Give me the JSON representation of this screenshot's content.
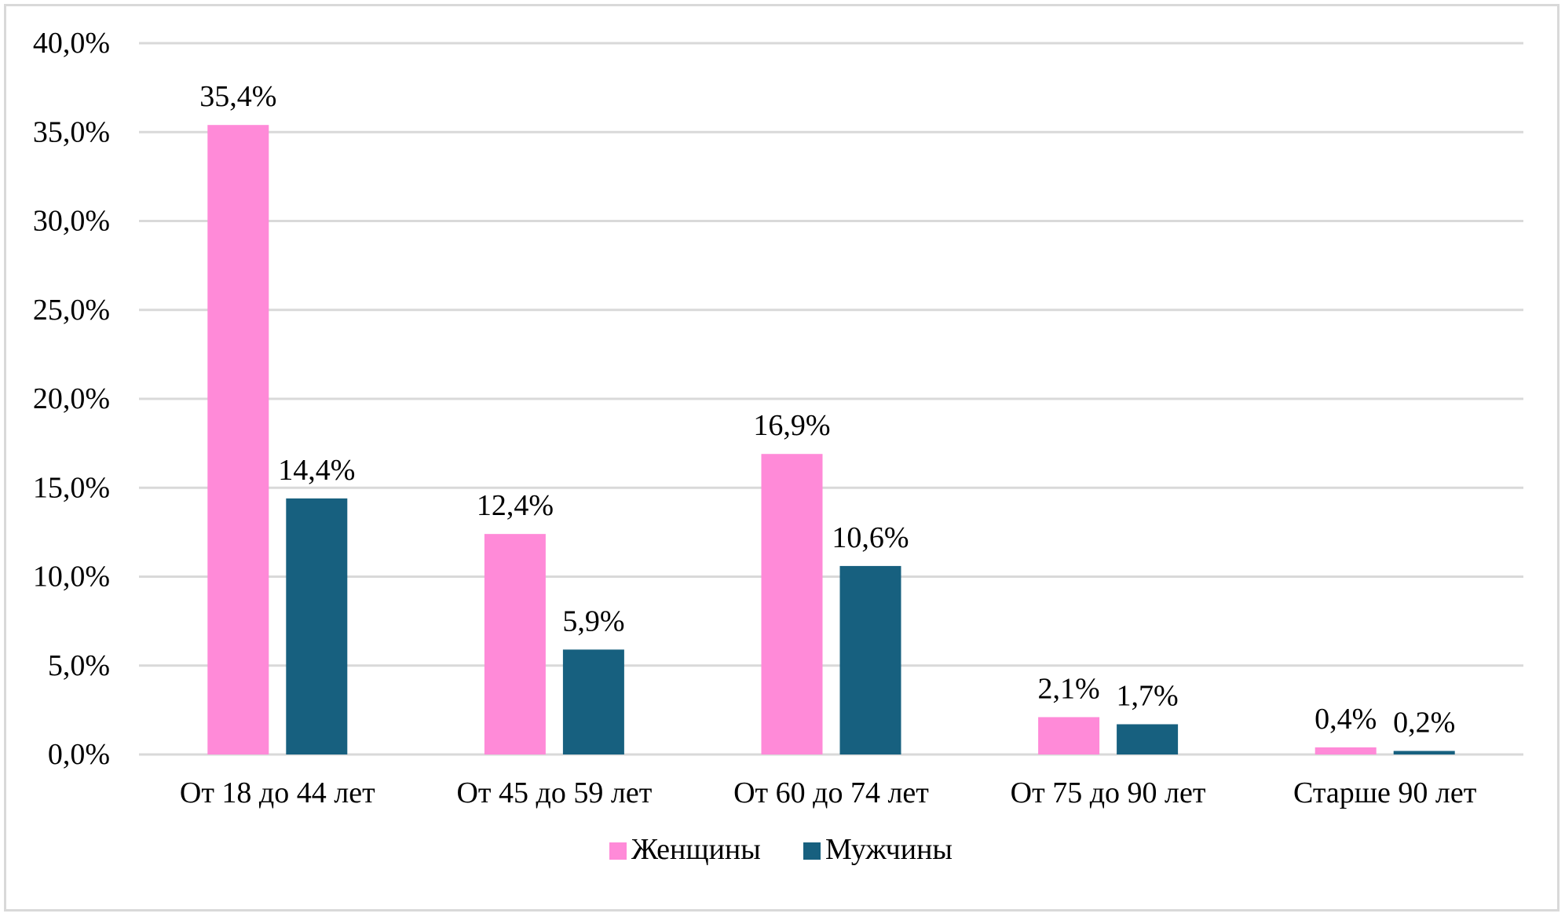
{
  "chart_data": {
    "type": "bar",
    "title": "",
    "xlabel": "",
    "ylabel": "",
    "categories": [
      "От 18 до 44 лет",
      "От 45 до 59 лет",
      "От 60 до 74 лет",
      "От 75 до 90 лет",
      "Старше 90 лет"
    ],
    "series": [
      {
        "name": "Женщины",
        "color": "#ff8ad8",
        "values": [
          35.4,
          12.4,
          16.9,
          2.1,
          0.4
        ],
        "labels": [
          "35,4%",
          "12,4%",
          "16,9%",
          "2,1%",
          "0,4%"
        ]
      },
      {
        "name": "Мужчины",
        "color": "#17607f",
        "values": [
          14.4,
          5.9,
          10.6,
          1.7,
          0.2
        ],
        "labels": [
          "14,4%",
          "5,9%",
          "10,6%",
          "1,7%",
          "0,2%"
        ]
      }
    ],
    "ylim": [
      0,
      40
    ],
    "yticks": [
      0,
      5,
      10,
      15,
      20,
      25,
      30,
      35,
      40
    ],
    "ytick_labels": [
      "0,0%",
      "5,0%",
      "10,0%",
      "15,0%",
      "20,0%",
      "25,0%",
      "30,0%",
      "35,0%",
      "40,0%"
    ],
    "grid": true,
    "gridline_color": "#d9d9d9",
    "legend_position": "bottom"
  }
}
